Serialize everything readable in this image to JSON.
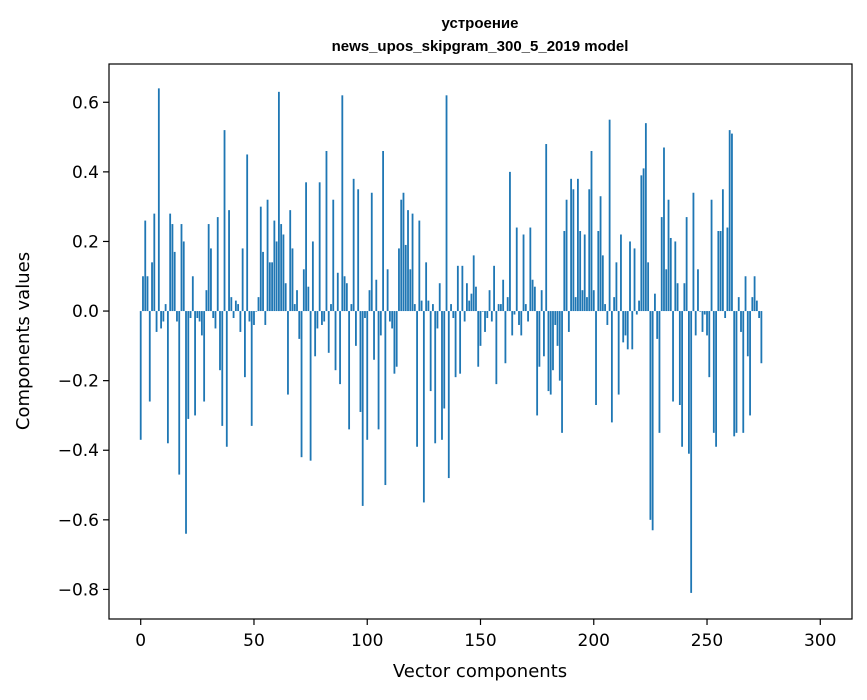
{
  "chart_data": {
    "type": "bar",
    "title_lines": [
      "устроение",
      "news_upos_skipgram_300_5_2019 model"
    ],
    "xlabel": "Vector components",
    "ylabel": "Components values",
    "xlim": [
      -14,
      314
    ],
    "ylim": [
      -0.885,
      0.71
    ],
    "xticks": [
      0,
      50,
      100,
      150,
      200,
      250,
      300
    ],
    "xtick_labels": [
      "0",
      "50",
      "100",
      "150",
      "200",
      "250",
      "300"
    ],
    "yticks": [
      -0.8,
      -0.6,
      -0.4,
      -0.2,
      0.0,
      0.2,
      0.4,
      0.6
    ],
    "ytick_labels": [
      "−0.8",
      "−0.6",
      "−0.4",
      "−0.2",
      "0.0",
      "0.2",
      "0.4",
      "0.6"
    ],
    "bar_color": "#1f77b4",
    "grid": false,
    "legend": "none",
    "values": [
      -0.37,
      0.1,
      0.26,
      0.1,
      -0.26,
      0.14,
      0.28,
      -0.06,
      0.64,
      -0.05,
      -0.03,
      0.02,
      -0.38,
      0.28,
      0.25,
      0.17,
      -0.03,
      -0.47,
      0.25,
      0.2,
      -0.64,
      -0.31,
      -0.02,
      0.1,
      -0.3,
      -0.02,
      -0.03,
      -0.07,
      -0.26,
      0.06,
      0.25,
      0.18,
      -0.02,
      -0.05,
      0.27,
      -0.17,
      -0.33,
      0.52,
      -0.39,
      0.29,
      0.04,
      -0.02,
      0.03,
      0.02,
      -0.06,
      0.18,
      -0.19,
      0.45,
      -0.03,
      -0.33,
      -0.04,
      0.0,
      0.04,
      0.3,
      0.17,
      -0.04,
      0.32,
      0.14,
      0.14,
      0.26,
      0.2,
      0.63,
      0.25,
      0.22,
      0.08,
      -0.24,
      0.29,
      0.18,
      0.02,
      0.06,
      -0.08,
      -0.42,
      0.12,
      0.37,
      0.07,
      -0.43,
      0.2,
      -0.13,
      -0.05,
      0.37,
      -0.04,
      -0.03,
      0.46,
      -0.12,
      0.02,
      0.32,
      -0.17,
      0.11,
      -0.21,
      0.62,
      0.1,
      0.08,
      -0.34,
      0.02,
      0.38,
      -0.1,
      0.35,
      -0.29,
      -0.56,
      -0.02,
      -0.37,
      0.06,
      0.34,
      -0.14,
      0.09,
      -0.34,
      -0.07,
      0.46,
      -0.5,
      0.12,
      -0.03,
      -0.05,
      -0.18,
      -0.16,
      0.18,
      0.32,
      0.34,
      0.19,
      0.29,
      0.12,
      0.28,
      0.02,
      -0.39,
      0.26,
      0.03,
      -0.55,
      0.14,
      0.03,
      -0.23,
      0.02,
      -0.38,
      -0.05,
      0.08,
      -0.37,
      -0.28,
      0.62,
      -0.48,
      0.02,
      -0.02,
      -0.19,
      0.13,
      -0.18,
      0.13,
      -0.03,
      0.08,
      0.03,
      0.05,
      0.16,
      0.07,
      -0.16,
      -0.1,
      0.0,
      -0.06,
      -0.02,
      0.06,
      -0.03,
      0.13,
      -0.21,
      0.02,
      0.02,
      0.09,
      -0.15,
      0.04,
      0.4,
      -0.07,
      -0.01,
      0.24,
      -0.04,
      -0.07,
      0.22,
      0.02,
      -0.03,
      0.24,
      0.09,
      0.07,
      -0.3,
      -0.16,
      0.06,
      -0.13,
      0.48,
      -0.23,
      -0.24,
      -0.17,
      -0.04,
      -0.1,
      -0.2,
      -0.35,
      0.23,
      0.32,
      -0.06,
      0.38,
      0.35,
      0.04,
      0.38,
      0.23,
      0.06,
      0.22,
      0.04,
      0.35,
      0.46,
      0.06,
      -0.27,
      0.23,
      0.33,
      0.16,
      0.02,
      -0.04,
      0.55,
      -0.32,
      0.04,
      0.14,
      -0.24,
      0.22,
      -0.09,
      -0.07,
      -0.11,
      0.2,
      -0.11,
      0.18,
      -0.01,
      0.03,
      0.39,
      0.41,
      0.54,
      0.14,
      -0.6,
      -0.63,
      0.05,
      -0.08,
      -0.35,
      0.27,
      0.47,
      0.12,
      0.32,
      0.21,
      -0.26,
      0.2,
      0.08,
      -0.27,
      -0.39,
      0.08,
      0.27,
      -0.41,
      -0.81,
      0.34,
      -0.07,
      0.12,
      0.0,
      -0.06,
      -0.01,
      -0.07,
      -0.19,
      0.32,
      -0.35,
      -0.39,
      0.23,
      0.23,
      0.35,
      -0.02,
      0.24,
      0.52,
      0.51,
      -0.36,
      -0.35,
      0.04,
      -0.06,
      -0.35,
      0.1,
      -0.13,
      -0.3,
      0.04,
      0.1,
      0.03,
      -0.02,
      -0.15
    ]
  }
}
